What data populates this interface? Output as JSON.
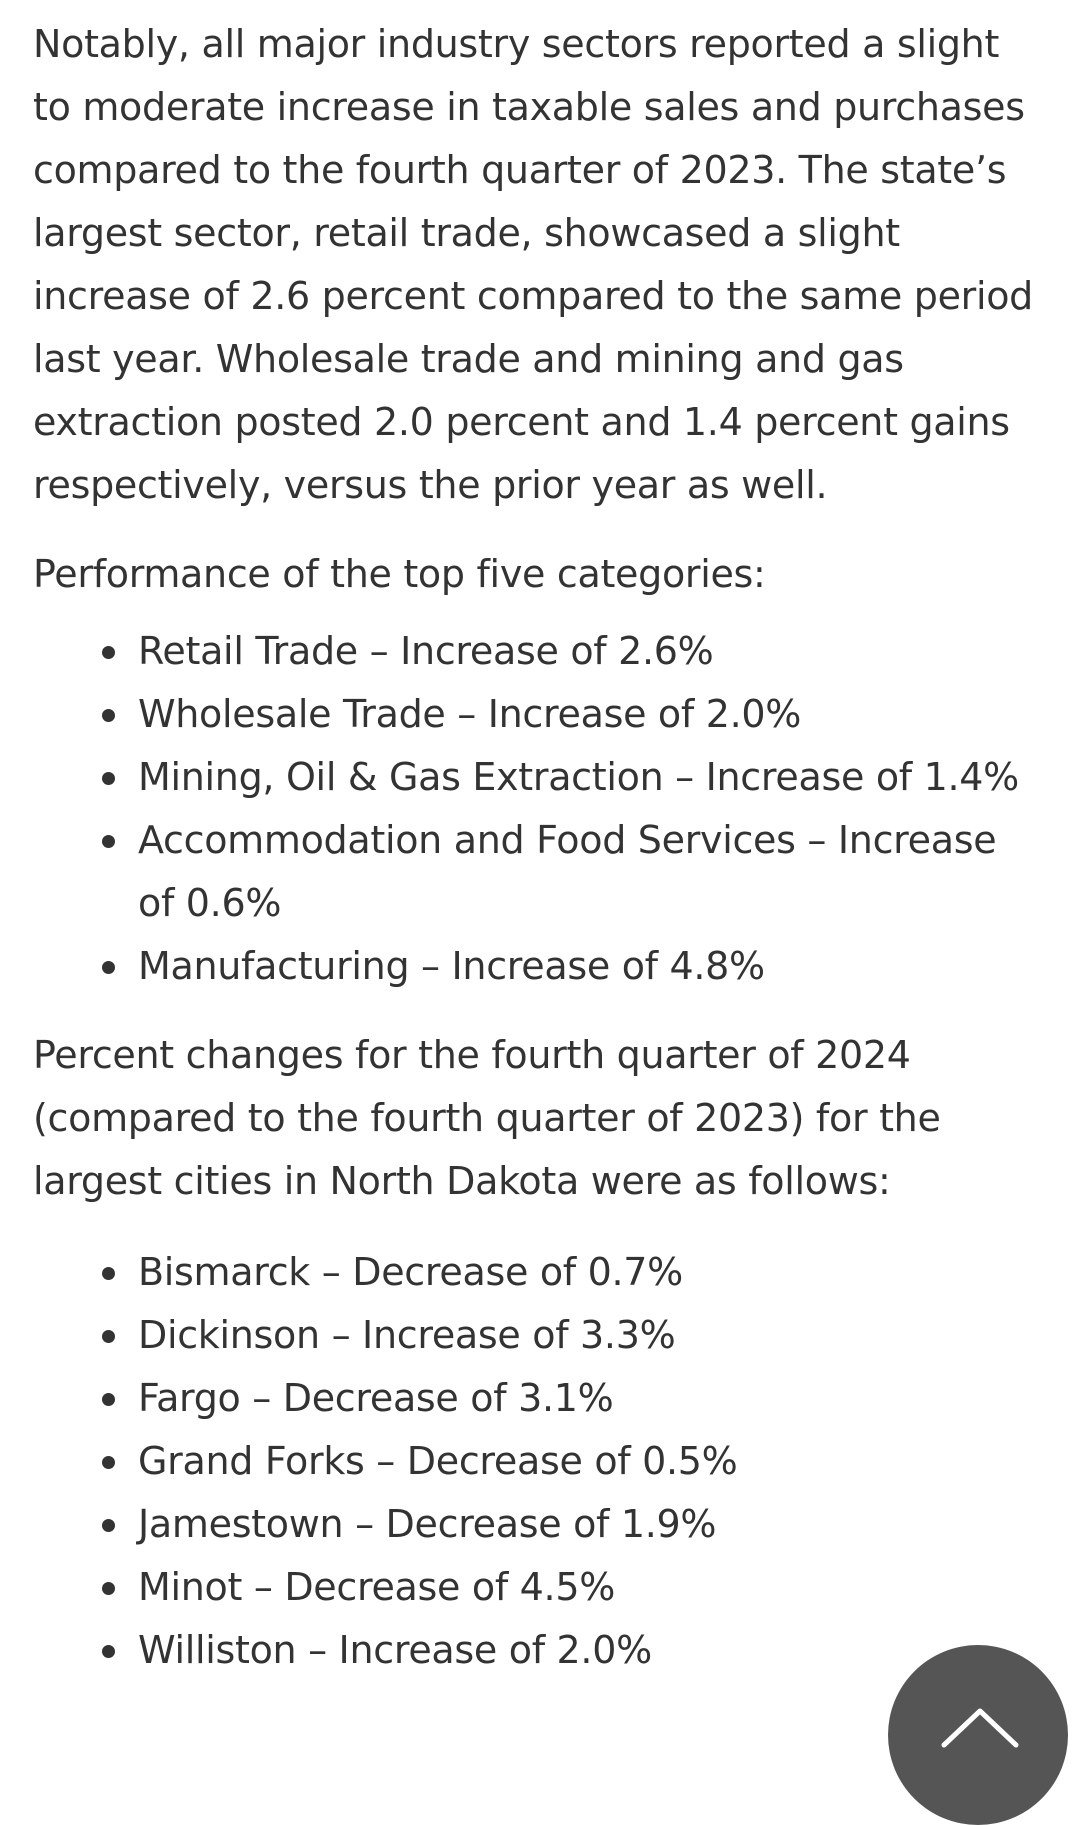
{
  "article": {
    "intro_paragraph": "Notably, all major industry sectors reported a slight to moderate increase in taxable sales and purchases compared to the fourth quarter of 2023. The state’s largest sector, retail trade, showcased a slight increase of 2.6 percent compared to the same period last year. Wholesale trade and mining and gas extraction posted 2.0 percent and 1.4 percent gains respectively, versus the prior year as well.",
    "categories_heading": "Performance of the top five categories:",
    "categories": [
      "Retail Trade – Increase of 2.6%",
      "Wholesale Trade – Increase of 2.0%",
      "Mining, Oil & Gas Extraction – Increase of 1.4%",
      "Accommodation and Food Services – Increase of 0.6%",
      "Manufacturing – Increase of 4.8%"
    ],
    "cities_heading": "Percent changes for the fourth quarter of 2024 (compared to the fourth quarter of 2023) for the largest cities in North Dakota were as follows:",
    "cities": [
      "Bismarck – Decrease of 0.7%",
      "Dickinson – Increase of 3.3%",
      "Fargo – Decrease of 3.1%",
      "Grand Forks – Decrease of 0.5%",
      "Jamestown – Decrease of 1.9%",
      "Minot – Decrease of 4.5%",
      "Williston – Increase of 2.0%"
    ]
  },
  "back_to_top": {
    "icon": "chevron-up-icon",
    "color": "#555555"
  }
}
